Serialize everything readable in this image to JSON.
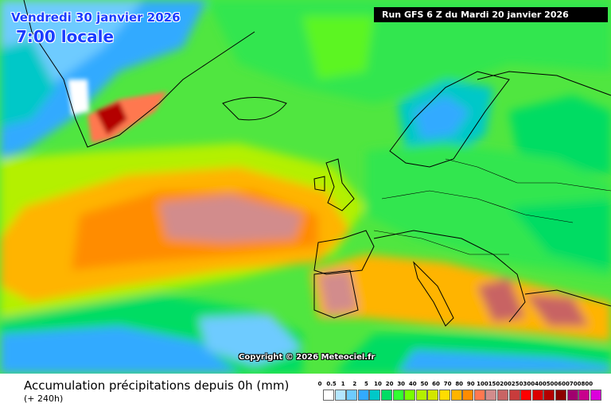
{
  "header": {
    "date": "Vendredi 30 janvier 2026",
    "time": "7:00 locale",
    "run": "Run GFS 6 Z du Mardi 20 janvier 2026"
  },
  "copyright": "Copyright © 2026 Meteociel.fr",
  "footer": {
    "title": "Accumulation précipitations depuis 0h (mm)",
    "subtitle": "(+ 240h)"
  },
  "legend": {
    "labels": [
      "0",
      "0.5",
      "1",
      "2",
      "5",
      "10",
      "20",
      "30",
      "40",
      "50",
      "60",
      "70",
      "80",
      "90",
      "100",
      "150",
      "200",
      "250",
      "300",
      "400",
      "500",
      "600",
      "700",
      "800"
    ],
    "colors": [
      "#ffffff",
      "#b4e6ff",
      "#6ecbff",
      "#32aaff",
      "#00c8c8",
      "#00dc64",
      "#32ff32",
      "#78ff00",
      "#b4f000",
      "#d2e600",
      "#ffdc00",
      "#ffb400",
      "#ff8c00",
      "#ff7850",
      "#d28c8c",
      "#c86464",
      "#c83c3c",
      "#ff0000",
      "#dc0000",
      "#b40000",
      "#8c0000",
      "#a0006e",
      "#c8008c",
      "#dc00dc"
    ]
  },
  "map": {
    "ocean_color": "#1e8cff",
    "land_border_color": "#000000"
  }
}
